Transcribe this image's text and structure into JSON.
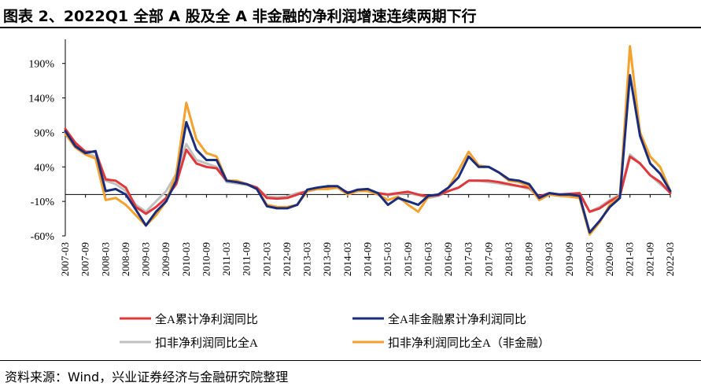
{
  "title": "图表 2、2022Q1 全部 A 股及全 A 非金融的净利润增速连续两期下行",
  "source": "资料来源：Wind，兴业证券经济与金融研究院整理",
  "chart_data": {
    "type": "line",
    "title": "",
    "xlabel": "",
    "ylabel": "",
    "ylim": [
      -60,
      225
    ],
    "y_ticks": [
      "-60%",
      "-10%",
      "40%",
      "90%",
      "140%",
      "190%"
    ],
    "y_tick_values": [
      -60,
      -10,
      40,
      90,
      140,
      190
    ],
    "x_ticks": [
      "2007-03",
      "2007-09",
      "2008-03",
      "2008-09",
      "2009-03",
      "2009-09",
      "2010-03",
      "2010-09",
      "2011-03",
      "2011-09",
      "2012-03",
      "2012-09",
      "2013-03",
      "2013-09",
      "2014-03",
      "2014-09",
      "2015-03",
      "2015-09",
      "2016-03",
      "2016-09",
      "2017-03",
      "2017-09",
      "2018-03",
      "2018-09",
      "2019-03",
      "2019-09",
      "2020-03",
      "2020-09",
      "2021-03",
      "2021-09",
      "2022-03"
    ],
    "x": [
      "2007-03",
      "2007-06",
      "2007-09",
      "2007-12",
      "2008-03",
      "2008-06",
      "2008-09",
      "2008-12",
      "2009-03",
      "2009-06",
      "2009-09",
      "2009-12",
      "2010-03",
      "2010-06",
      "2010-09",
      "2010-12",
      "2011-03",
      "2011-06",
      "2011-09",
      "2011-12",
      "2012-03",
      "2012-06",
      "2012-09",
      "2012-12",
      "2013-03",
      "2013-06",
      "2013-09",
      "2013-12",
      "2014-03",
      "2014-06",
      "2014-09",
      "2014-12",
      "2015-03",
      "2015-06",
      "2015-09",
      "2015-12",
      "2016-03",
      "2016-06",
      "2016-09",
      "2016-12",
      "2017-03",
      "2017-06",
      "2017-09",
      "2017-12",
      "2018-03",
      "2018-06",
      "2018-09",
      "2018-12",
      "2019-03",
      "2019-06",
      "2019-09",
      "2019-12",
      "2020-03",
      "2020-06",
      "2020-09",
      "2020-12",
      "2021-03",
      "2021-06",
      "2021-09",
      "2021-12",
      "2022-03"
    ],
    "series": [
      {
        "name": "全A累计净利润同比",
        "color": "#e0383a",
        "values": [
          95,
          75,
          62,
          62,
          22,
          20,
          10,
          -18,
          -28,
          -18,
          -5,
          15,
          65,
          45,
          40,
          38,
          20,
          18,
          15,
          10,
          -5,
          -6,
          -5,
          0,
          5,
          8,
          10,
          10,
          3,
          5,
          5,
          2,
          0,
          2,
          4,
          0,
          -3,
          -1,
          5,
          10,
          20,
          20,
          20,
          18,
          15,
          12,
          10,
          -3,
          2,
          0,
          1,
          2,
          -25,
          -20,
          -10,
          -2,
          55,
          45,
          28,
          18,
          2
        ]
      },
      {
        "name": "全A非金融累计净利润同比",
        "color": "#1a2c7c",
        "values": [
          92,
          70,
          60,
          63,
          5,
          8,
          0,
          -22,
          -45,
          -25,
          -10,
          20,
          105,
          65,
          50,
          50,
          20,
          18,
          15,
          8,
          -17,
          -20,
          -20,
          -15,
          7,
          10,
          12,
          12,
          2,
          7,
          8,
          2,
          -15,
          -5,
          -10,
          -15,
          -2,
          0,
          10,
          25,
          55,
          40,
          40,
          32,
          22,
          20,
          15,
          -5,
          2,
          0,
          0,
          -2,
          -55,
          -38,
          -18,
          -5,
          173,
          85,
          45,
          30,
          5
        ]
      },
      {
        "name": "扣非净利润同比全A",
        "color": "#c0c0c0",
        "values": [
          90,
          72,
          60,
          55,
          20,
          15,
          5,
          -15,
          -25,
          -10,
          5,
          30,
          73,
          50,
          45,
          40,
          18,
          16,
          14,
          10,
          -3,
          -4,
          -3,
          2,
          5,
          8,
          10,
          10,
          3,
          5,
          5,
          2,
          -1,
          1,
          2,
          -1,
          -5,
          -2,
          5,
          10,
          20,
          20,
          18,
          16,
          14,
          12,
          8,
          -4,
          0,
          0,
          0,
          0,
          -25,
          -18,
          -8,
          0,
          58,
          45,
          28,
          15,
          3
        ]
      },
      {
        "name": "扣非净利润同比全A（非金融）",
        "color": "#f5a12e",
        "values": [
          88,
          68,
          58,
          52,
          -8,
          -5,
          -15,
          -30,
          -45,
          -30,
          -10,
          30,
          133,
          80,
          60,
          55,
          20,
          20,
          15,
          8,
          -15,
          -18,
          -18,
          -15,
          5,
          8,
          8,
          10,
          0,
          5,
          5,
          0,
          -8,
          -3,
          -15,
          -25,
          -3,
          0,
          10,
          35,
          62,
          42,
          40,
          32,
          20,
          18,
          12,
          -8,
          0,
          -2,
          -3,
          -5,
          -58,
          -40,
          -15,
          -3,
          215,
          90,
          55,
          40,
          5
        ]
      }
    ],
    "legend": [
      "全A累计净利润同比",
      "全A非金融累计净利润同比",
      "扣非净利润同比全A",
      "扣非净利润同比全A（非金融）"
    ],
    "legend_position": "bottom",
    "grid": false
  }
}
